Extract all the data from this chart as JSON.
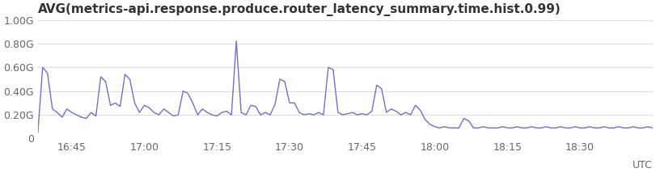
{
  "title": "AVG(metrics-api.response.produce.router_latency_summary.time.hist.0.99)",
  "line_color": "#7070c8",
  "background_color": "#ffffff",
  "ylabel_utc": "UTC",
  "ylim": [
    0,
    1.0
  ],
  "yticks": [
    0,
    0.2,
    0.4,
    0.6,
    0.8,
    1.0
  ],
  "ytick_labels": [
    "0",
    "0.20G",
    "0.40G",
    "0.60G",
    "0.80G",
    "1.00G"
  ],
  "xtick_labels": [
    "16:45",
    "17:00",
    "17:15",
    "17:30",
    "17:45",
    "18:00",
    "18:15",
    "18:30"
  ],
  "y_values": [
    0.05,
    0.6,
    0.55,
    0.25,
    0.22,
    0.18,
    0.25,
    0.22,
    0.2,
    0.18,
    0.17,
    0.22,
    0.19,
    0.52,
    0.48,
    0.28,
    0.3,
    0.27,
    0.54,
    0.5,
    0.3,
    0.22,
    0.28,
    0.26,
    0.22,
    0.2,
    0.25,
    0.22,
    0.19,
    0.2,
    0.4,
    0.38,
    0.3,
    0.2,
    0.25,
    0.22,
    0.2,
    0.19,
    0.22,
    0.23,
    0.2,
    0.82,
    0.22,
    0.2,
    0.28,
    0.27,
    0.2,
    0.22,
    0.2,
    0.29,
    0.5,
    0.48,
    0.3,
    0.3,
    0.22,
    0.2,
    0.21,
    0.2,
    0.22,
    0.2,
    0.6,
    0.58,
    0.22,
    0.2,
    0.21,
    0.22,
    0.2,
    0.21,
    0.2,
    0.23,
    0.45,
    0.42,
    0.22,
    0.25,
    0.23,
    0.2,
    0.22,
    0.2,
    0.28,
    0.24,
    0.16,
    0.12,
    0.1,
    0.09,
    0.1,
    0.09,
    0.09,
    0.09,
    0.17,
    0.15,
    0.09,
    0.09,
    0.1,
    0.09,
    0.09,
    0.09,
    0.1,
    0.09,
    0.09,
    0.1,
    0.09,
    0.09,
    0.1,
    0.09,
    0.09,
    0.1,
    0.09,
    0.09,
    0.1,
    0.09,
    0.09,
    0.1,
    0.09,
    0.09,
    0.1,
    0.09,
    0.09,
    0.1,
    0.09,
    0.09,
    0.1,
    0.09,
    0.09,
    0.1,
    0.09,
    0.09,
    0.1,
    0.09
  ],
  "xtick_positions": [
    7,
    22,
    37,
    52,
    67,
    82,
    97,
    112
  ],
  "title_fontsize": 11,
  "tick_fontsize": 9,
  "line_width": 1.0
}
